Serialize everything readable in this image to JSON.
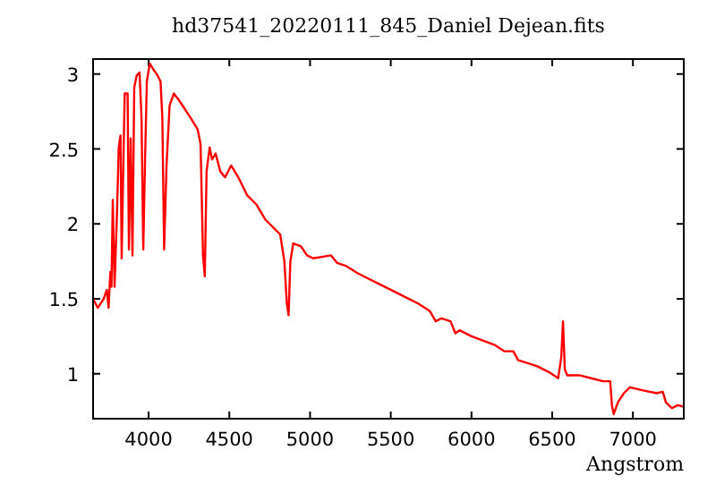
{
  "chart_data": {
    "type": "line",
    "title": "hd37541_20220111_845_Daniel Dejean.fits",
    "xlabel": "Angstrom",
    "xlim": [
      3656,
      7315
    ],
    "ylim": [
      0.7,
      3.1
    ],
    "xticks": [
      4000,
      4500,
      5000,
      5500,
      6000,
      6500,
      7000
    ],
    "yticks": [
      1,
      1.5,
      2,
      2.5,
      3
    ],
    "grid": false,
    "marker": "none",
    "line_style": "solid",
    "series": [
      {
        "color": "#ff0000",
        "x": [
          3656,
          3685,
          3722,
          3741,
          3752,
          3763,
          3770,
          3778,
          3789,
          3804,
          3815,
          3826,
          3833,
          3844,
          3852,
          3870,
          3878,
          3889,
          3900,
          3911,
          3926,
          3944,
          3956,
          3967,
          3978,
          3989,
          4007,
          4030,
          4056,
          4074,
          4085,
          4096,
          4111,
          4130,
          4156,
          4185,
          4222,
          4259,
          4304,
          4322,
          4337,
          4348,
          4359,
          4378,
          4393,
          4415,
          4444,
          4474,
          4511,
          4556,
          4611,
          4667,
          4722,
          4778,
          4815,
          4841,
          4856,
          4867,
          4878,
          4896,
          4944,
          4981,
          5019,
          5074,
          5130,
          5167,
          5222,
          5267,
          5296,
          5370,
          5444,
          5519,
          5593,
          5667,
          5741,
          5778,
          5815,
          5870,
          5900,
          5926,
          6000,
          6074,
          6148,
          6204,
          6259,
          6289,
          6352,
          6407,
          6481,
          6537,
          6556,
          6567,
          6578,
          6593,
          6667,
          6741,
          6815,
          6859,
          6870,
          6881,
          6907,
          6944,
          6981,
          7056,
          7148,
          7185,
          7204,
          7241,
          7278,
          7315
        ],
        "values": [
          1.5,
          1.44,
          1.5,
          1.56,
          1.44,
          1.68,
          1.58,
          2.16,
          1.58,
          2.07,
          2.51,
          2.59,
          1.77,
          2.43,
          2.87,
          2.87,
          1.83,
          2.57,
          1.79,
          2.91,
          2.99,
          3.01,
          2.71,
          1.83,
          2.43,
          2.95,
          3.07,
          3.03,
          2.99,
          2.95,
          2.71,
          1.83,
          2.39,
          2.79,
          2.87,
          2.83,
          2.77,
          2.71,
          2.63,
          2.53,
          1.79,
          1.65,
          2.35,
          2.51,
          2.43,
          2.47,
          2.35,
          2.31,
          2.39,
          2.31,
          2.19,
          2.13,
          2.03,
          1.97,
          1.93,
          1.75,
          1.47,
          1.39,
          1.75,
          1.87,
          1.85,
          1.79,
          1.77,
          1.78,
          1.79,
          1.74,
          1.72,
          1.69,
          1.67,
          1.63,
          1.59,
          1.55,
          1.51,
          1.47,
          1.42,
          1.35,
          1.37,
          1.35,
          1.27,
          1.29,
          1.25,
          1.22,
          1.19,
          1.15,
          1.15,
          1.09,
          1.07,
          1.05,
          1.01,
          0.97,
          1.11,
          1.35,
          1.03,
          0.99,
          0.99,
          0.97,
          0.95,
          0.95,
          0.79,
          0.73,
          0.81,
          0.87,
          0.91,
          0.89,
          0.87,
          0.88,
          0.81,
          0.77,
          0.79,
          0.78
        ]
      }
    ]
  }
}
